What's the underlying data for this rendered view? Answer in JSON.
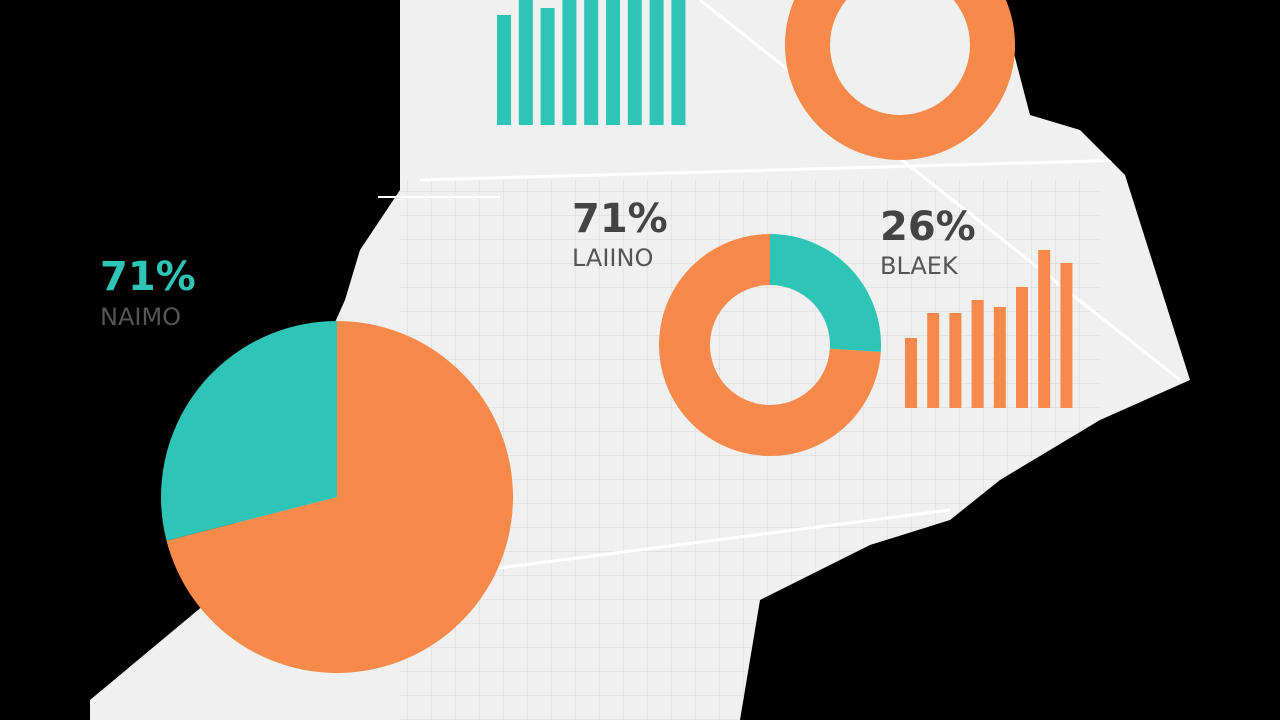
{
  "chart_data": [
    {
      "type": "bar",
      "values": [
        110,
        125,
        117,
        125,
        125,
        125,
        125,
        125,
        125
      ],
      "color": "#2ec4b6",
      "ylim": [
        0,
        125
      ]
    },
    {
      "type": "donut",
      "values": [
        100
      ],
      "colors": [
        "#f7894a"
      ]
    },
    {
      "type": "pie",
      "values": [
        71,
        29
      ],
      "colors": [
        "#f7894a",
        "#2ec4b6"
      ],
      "annotation": {
        "text": "71%",
        "label": "NAIMO"
      }
    },
    {
      "type": "donut",
      "values": [
        26,
        74
      ],
      "colors": [
        "#2ec4b6",
        "#f7894a"
      ],
      "annotation": {
        "text": "26%",
        "label": "BLAEK"
      }
    },
    {
      "type": "bar",
      "values": [
        70,
        95,
        95,
        108,
        101,
        121,
        158,
        145
      ],
      "color": "#f7894a",
      "ylim": [
        0,
        160
      ]
    }
  ],
  "annotations": [
    {
      "text": "71%",
      "label": "LAIINO"
    }
  ]
}
